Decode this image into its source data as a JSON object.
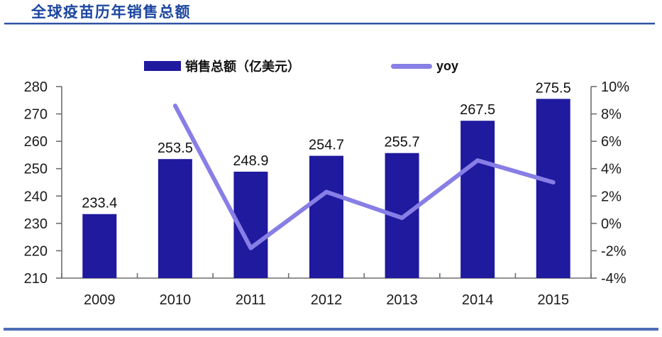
{
  "header": {
    "title": "全球疫苗历年销售总额"
  },
  "legend": {
    "bar_label": "销售总额（亿美元）",
    "line_label": "yoy"
  },
  "colors": {
    "bar": "#1f1a9e",
    "line": "#877ee6",
    "title": "#1c46a0",
    "top_rule": "#2e52a5",
    "bottom_rule": "#4e6db6",
    "axis": "#6e6e6e",
    "tick_label": "#1a1a1a",
    "data_label": "#111111"
  },
  "chart_data": {
    "type": "bar",
    "subtype": "bar+line combo",
    "title": "全球疫苗历年销售总额",
    "categories": [
      "2009",
      "2010",
      "2011",
      "2012",
      "2013",
      "2014",
      "2015"
    ],
    "series": [
      {
        "name": "销售总额（亿美元）",
        "type": "bar",
        "axis": "left",
        "values": [
          233.4,
          253.5,
          248.9,
          254.7,
          255.7,
          267.5,
          275.5
        ]
      },
      {
        "name": "yoy",
        "type": "line",
        "axis": "right",
        "values": [
          null,
          8.6,
          -1.8,
          2.3,
          0.4,
          4.6,
          3.0
        ]
      }
    ],
    "bar_labels": [
      "233.4",
      "253.5",
      "248.9",
      "254.7",
      "255.7",
      "267.5",
      "275.5"
    ],
    "left_axis": {
      "min": 210,
      "max": 280,
      "step": 10,
      "ticks": [
        "280",
        "270",
        "260",
        "250",
        "240",
        "230",
        "220",
        "210"
      ]
    },
    "right_axis": {
      "min": -4,
      "max": 10,
      "step": 2,
      "ticks": [
        "10%",
        "8%",
        "6%",
        "4%",
        "2%",
        "0%",
        "-2%",
        "-4%"
      ]
    },
    "grid": false,
    "legend_position": "top"
  }
}
